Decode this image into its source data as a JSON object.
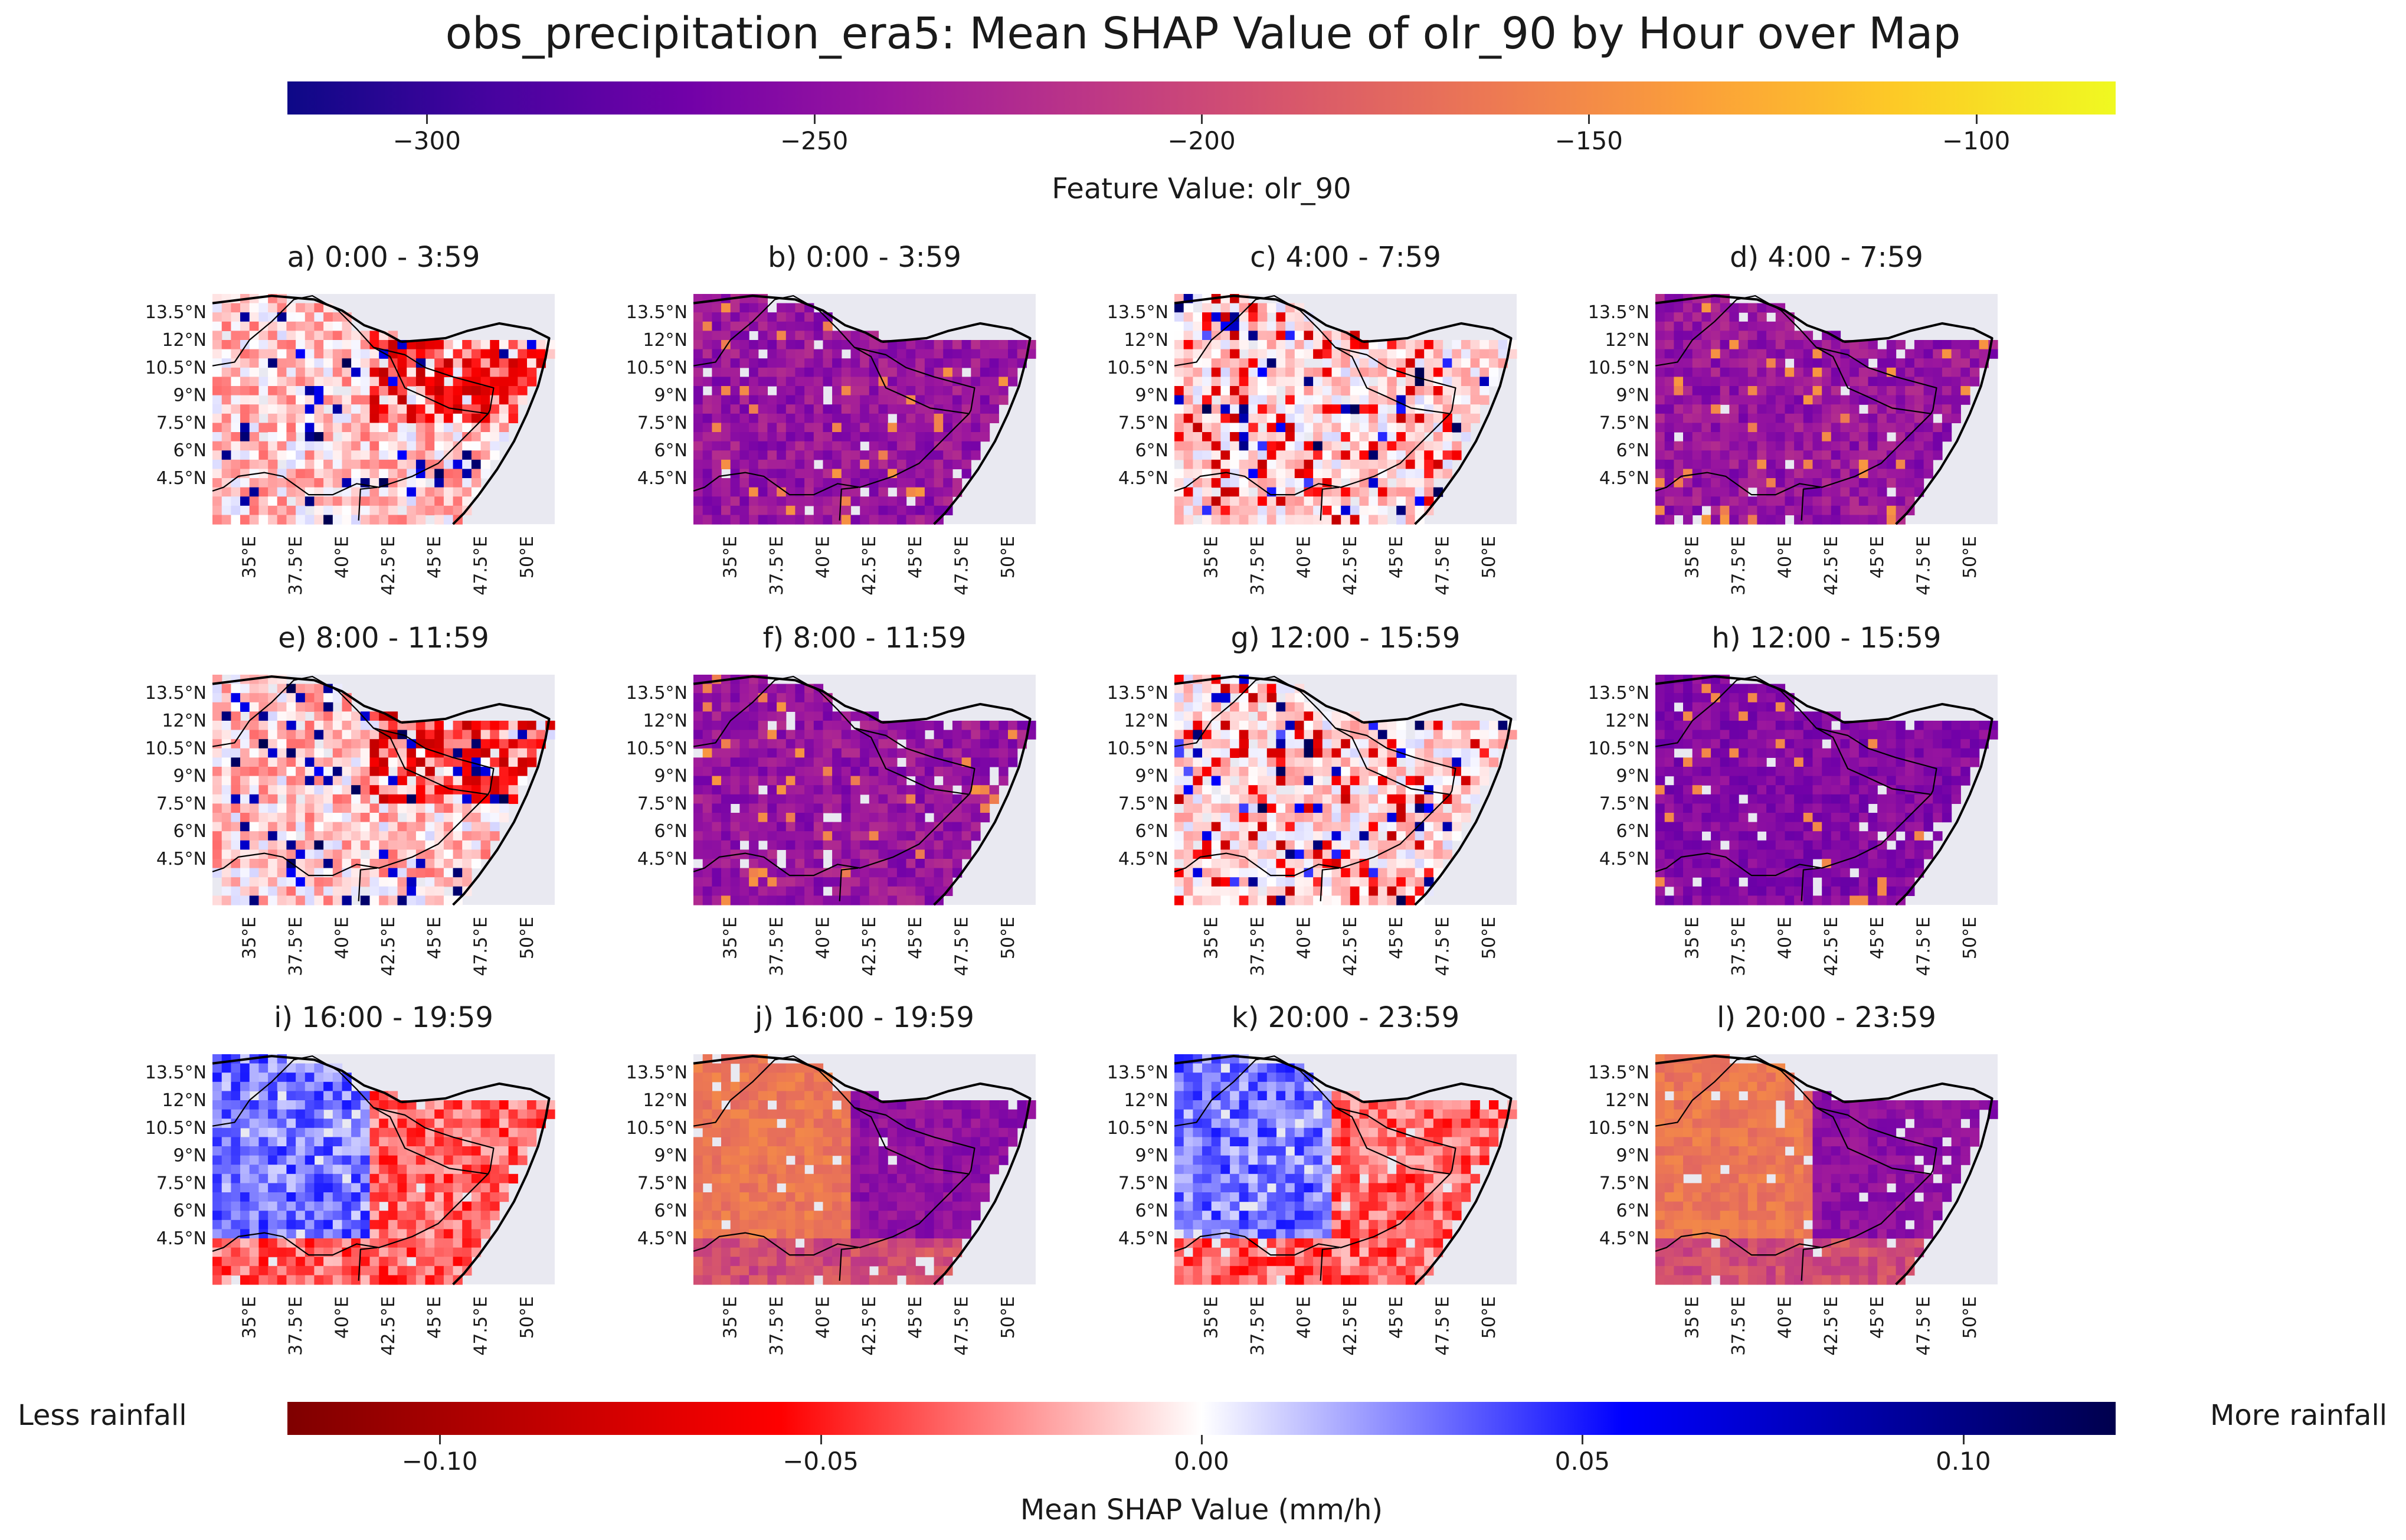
{
  "title": "obs_precipitation_era5: Mean SHAP Value of olr_90 by Hour over Map",
  "colors": {
    "feature_cmap": [
      "#0d0887",
      "#46039f",
      "#7201a8",
      "#9c179e",
      "#bd3786",
      "#d8576b",
      "#ed7953",
      "#fb9f3a",
      "#fdca26",
      "#f0f921"
    ],
    "shap_cmap": [
      "#7f0000",
      "#ff0000",
      "#ffffff",
      "#0000ff",
      "#00004d"
    ],
    "background": "#e9e9f1"
  },
  "chart_data": {
    "type": "heatmap",
    "feature_colorbar": {
      "label": "Feature Value: olr_90",
      "range": [
        -318,
        -82
      ],
      "ticks": [
        {
          "value": -300,
          "label": "−300"
        },
        {
          "value": -250,
          "label": "−250"
        },
        {
          "value": -200,
          "label": "−200"
        },
        {
          "value": -150,
          "label": "−150"
        },
        {
          "value": -100,
          "label": "−100"
        }
      ]
    },
    "shap_colorbar": {
      "label": "Mean SHAP Value (mm/h)",
      "range": [
        -0.12,
        0.12
      ],
      "ticks": [
        {
          "value": -0.1,
          "label": "−0.10"
        },
        {
          "value": -0.05,
          "label": "−0.05"
        },
        {
          "value": 0.0,
          "label": "0.00"
        },
        {
          "value": 0.05,
          "label": "0.05"
        },
        {
          "value": 0.1,
          "label": "0.10"
        }
      ],
      "left_label": "Less rainfall",
      "right_label": "More rainfall"
    },
    "map_extent": {
      "lon": [
        33.0,
        51.5
      ],
      "lat": [
        2.0,
        14.5
      ]
    },
    "lat_ticks": [
      "13.5°N",
      "12°N",
      "10.5°N",
      "9°N",
      "7.5°N",
      "6°N",
      "4.5°N"
    ],
    "lat_values": [
      13.5,
      12,
      10.5,
      9,
      7.5,
      6,
      4.5
    ],
    "lon_ticks": [
      "35°E",
      "37.5°E",
      "40°E",
      "42.5°E",
      "45°E",
      "47.5°E",
      "50°E"
    ],
    "lon_values": [
      35,
      37.5,
      40,
      42.5,
      45,
      47.5,
      50
    ],
    "panels": [
      {
        "title": "a) 0:00 - 3:59",
        "variable": "shap",
        "pattern": "mixed-red"
      },
      {
        "title": "b) 0:00 - 3:59",
        "variable": "feature",
        "pattern": "purple"
      },
      {
        "title": "c) 4:00 - 7:59",
        "variable": "shap",
        "pattern": "mixed-light"
      },
      {
        "title": "d) 4:00 - 7:59",
        "variable": "feature",
        "pattern": "purple"
      },
      {
        "title": "e) 8:00 - 11:59",
        "variable": "shap",
        "pattern": "mixed-red"
      },
      {
        "title": "f) 8:00 - 11:59",
        "variable": "feature",
        "pattern": "purple"
      },
      {
        "title": "g) 12:00 - 15:59",
        "variable": "shap",
        "pattern": "mixed-light"
      },
      {
        "title": "h) 12:00 - 15:59",
        "variable": "feature",
        "pattern": "dark-purple"
      },
      {
        "title": "i) 16:00 - 19:59",
        "variable": "shap",
        "pattern": "blue-west-red-east"
      },
      {
        "title": "j) 16:00 - 19:59",
        "variable": "feature",
        "pattern": "orange-west-purple-east"
      },
      {
        "title": "k) 20:00 - 23:59",
        "variable": "shap",
        "pattern": "blue-west-red-east"
      },
      {
        "title": "l) 20:00 - 23:59",
        "variable": "feature",
        "pattern": "orange-west-purple-east"
      }
    ]
  }
}
